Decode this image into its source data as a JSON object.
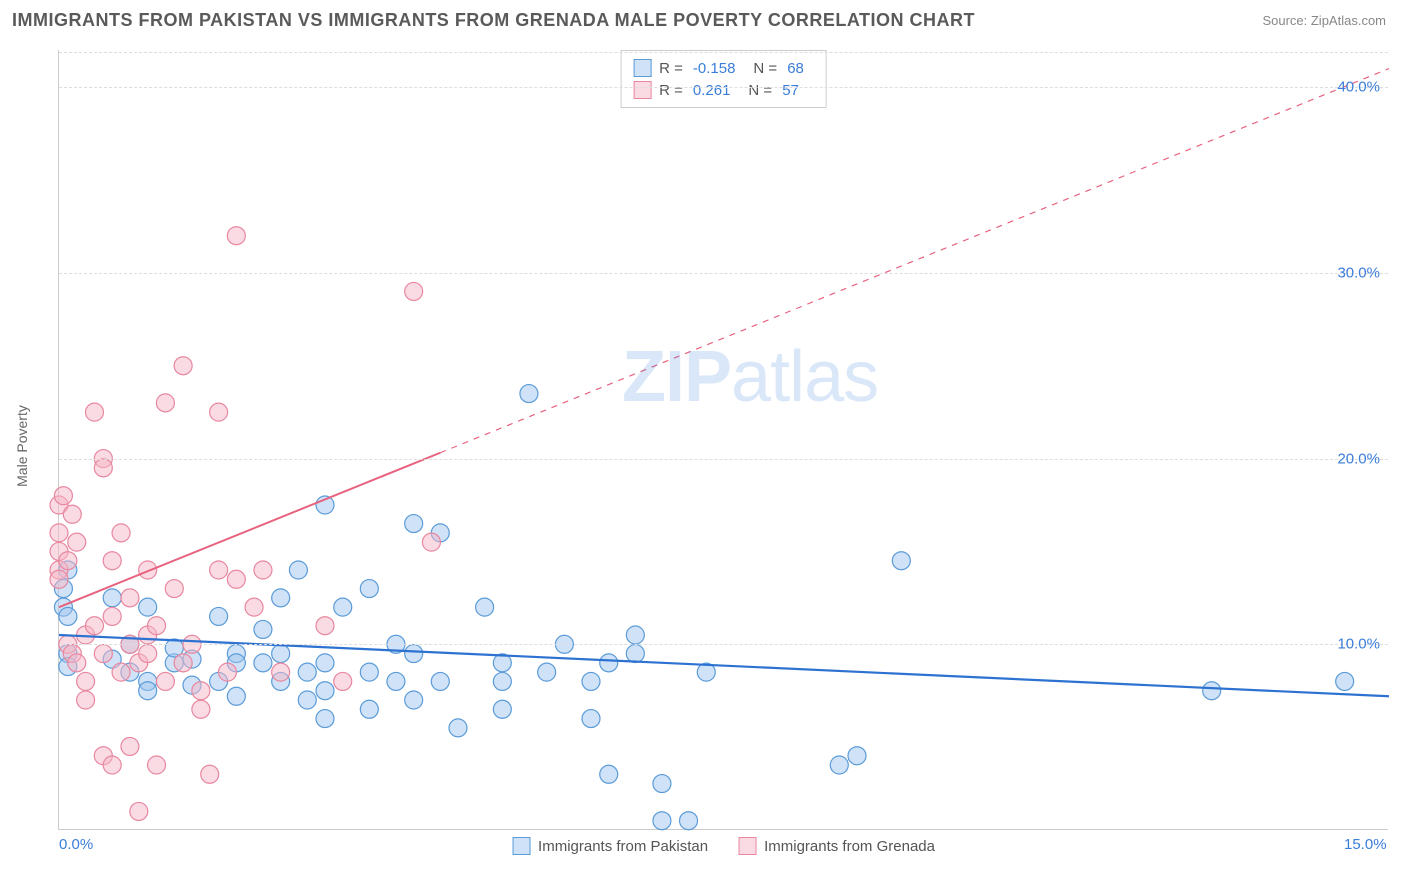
{
  "header": {
    "title": "IMMIGRANTS FROM PAKISTAN VS IMMIGRANTS FROM GRENADA MALE POVERTY CORRELATION CHART",
    "source": "Source: ZipAtlas.com"
  },
  "chart": {
    "type": "scatter",
    "ylabel": "Male Poverty",
    "xlim": [
      0,
      15
    ],
    "ylim": [
      0,
      42
    ],
    "yticks": [
      {
        "value": 10,
        "label": "10.0%"
      },
      {
        "value": 20,
        "label": "20.0%"
      },
      {
        "value": 30,
        "label": "30.0%"
      },
      {
        "value": 40,
        "label": "40.0%"
      }
    ],
    "xticks": [
      {
        "value": 0,
        "label": "0.0%"
      },
      {
        "value": 15,
        "label": "15.0%"
      }
    ],
    "background_color": "#ffffff",
    "grid_color": "#dddddd",
    "marker_radius": 9,
    "marker_stroke_width": 1.2,
    "series": [
      {
        "name": "Immigrants from Pakistan",
        "color_fill": "#9fc5f080",
        "color_stroke": "#5a9bd8",
        "R": "-0.158",
        "N": "68",
        "trend": {
          "x1": 0,
          "y1": 10.5,
          "x2": 15,
          "y2": 7.2,
          "color": "#2d72d0",
          "width": 2.2,
          "dash": "none"
        },
        "points": [
          [
            0.05,
            13.0
          ],
          [
            0.05,
            12.0
          ],
          [
            0.1,
            14.0
          ],
          [
            0.1,
            11.5
          ],
          [
            0.1,
            9.5
          ],
          [
            0.1,
            8.8
          ],
          [
            0.6,
            12.5
          ],
          [
            0.6,
            9.2
          ],
          [
            0.8,
            10.0
          ],
          [
            0.8,
            8.5
          ],
          [
            1.0,
            12.0
          ],
          [
            1.0,
            8.0
          ],
          [
            1.0,
            7.5
          ],
          [
            1.3,
            9.0
          ],
          [
            1.3,
            9.8
          ],
          [
            1.5,
            9.2
          ],
          [
            1.5,
            7.8
          ],
          [
            1.8,
            11.5
          ],
          [
            1.8,
            8.0
          ],
          [
            2.0,
            9.5
          ],
          [
            2.0,
            9.0
          ],
          [
            2.0,
            7.2
          ],
          [
            2.3,
            10.8
          ],
          [
            2.3,
            9.0
          ],
          [
            2.5,
            12.5
          ],
          [
            2.5,
            9.5
          ],
          [
            2.5,
            8.0
          ],
          [
            2.7,
            14.0
          ],
          [
            2.8,
            7.0
          ],
          [
            2.8,
            8.5
          ],
          [
            3.0,
            17.5
          ],
          [
            3.0,
            9.0
          ],
          [
            3.0,
            7.5
          ],
          [
            3.0,
            6.0
          ],
          [
            3.2,
            12.0
          ],
          [
            3.5,
            13.0
          ],
          [
            3.5,
            8.5
          ],
          [
            3.5,
            6.5
          ],
          [
            3.8,
            10.0
          ],
          [
            3.8,
            8.0
          ],
          [
            4.0,
            16.5
          ],
          [
            4.0,
            9.5
          ],
          [
            4.0,
            7.0
          ],
          [
            4.3,
            16.0
          ],
          [
            4.3,
            8.0
          ],
          [
            4.5,
            5.5
          ],
          [
            4.8,
            12.0
          ],
          [
            5.0,
            9.0
          ],
          [
            5.0,
            8.0
          ],
          [
            5.0,
            6.5
          ],
          [
            5.3,
            23.5
          ],
          [
            5.5,
            8.5
          ],
          [
            5.7,
            10.0
          ],
          [
            6.0,
            8.0
          ],
          [
            6.0,
            6.0
          ],
          [
            6.2,
            9.0
          ],
          [
            6.2,
            3.0
          ],
          [
            6.5,
            10.5
          ],
          [
            6.5,
            9.5
          ],
          [
            6.8,
            2.5
          ],
          [
            6.8,
            0.5
          ],
          [
            7.1,
            0.5
          ],
          [
            7.3,
            8.5
          ],
          [
            8.8,
            3.5
          ],
          [
            9.0,
            4.0
          ],
          [
            9.5,
            14.5
          ],
          [
            13.0,
            7.5
          ],
          [
            14.5,
            8.0
          ]
        ]
      },
      {
        "name": "Immigrants from Grenada",
        "color_fill": "#f5b8c880",
        "color_stroke": "#e8879f",
        "R": "0.261",
        "N": "57",
        "trend": {
          "x1": 0,
          "y1": 12.0,
          "x2": 15,
          "y2": 41.0,
          "color": "#e8627f",
          "width": 2,
          "dash": "solid_then_dash"
        },
        "points": [
          [
            0.0,
            17.5
          ],
          [
            0.0,
            16.0
          ],
          [
            0.0,
            15.0
          ],
          [
            0.0,
            14.0
          ],
          [
            0.0,
            13.5
          ],
          [
            0.05,
            18.0
          ],
          [
            0.1,
            14.5
          ],
          [
            0.1,
            10.0
          ],
          [
            0.15,
            17.0
          ],
          [
            0.15,
            9.5
          ],
          [
            0.2,
            15.5
          ],
          [
            0.2,
            9.0
          ],
          [
            0.3,
            10.5
          ],
          [
            0.3,
            8.0
          ],
          [
            0.3,
            7.0
          ],
          [
            0.4,
            22.5
          ],
          [
            0.4,
            11.0
          ],
          [
            0.5,
            20.0
          ],
          [
            0.5,
            19.5
          ],
          [
            0.5,
            9.5
          ],
          [
            0.5,
            4.0
          ],
          [
            0.6,
            14.5
          ],
          [
            0.6,
            11.5
          ],
          [
            0.6,
            3.5
          ],
          [
            0.7,
            16.0
          ],
          [
            0.7,
            8.5
          ],
          [
            0.8,
            12.5
          ],
          [
            0.8,
            10.0
          ],
          [
            0.8,
            4.5
          ],
          [
            0.9,
            9.0
          ],
          [
            0.9,
            1.0
          ],
          [
            1.0,
            14.0
          ],
          [
            1.0,
            10.5
          ],
          [
            1.0,
            9.5
          ],
          [
            1.1,
            11.0
          ],
          [
            1.1,
            3.5
          ],
          [
            1.2,
            23.0
          ],
          [
            1.2,
            8.0
          ],
          [
            1.3,
            13.0
          ],
          [
            1.4,
            25.0
          ],
          [
            1.4,
            9.0
          ],
          [
            1.5,
            10.0
          ],
          [
            1.6,
            6.5
          ],
          [
            1.6,
            7.5
          ],
          [
            1.7,
            3.0
          ],
          [
            1.8,
            22.5
          ],
          [
            1.8,
            14.0
          ],
          [
            1.9,
            8.5
          ],
          [
            2.0,
            32.0
          ],
          [
            2.0,
            13.5
          ],
          [
            2.2,
            12.0
          ],
          [
            2.3,
            14.0
          ],
          [
            2.5,
            8.5
          ],
          [
            3.0,
            11.0
          ],
          [
            3.2,
            8.0
          ],
          [
            4.0,
            29.0
          ],
          [
            4.2,
            15.5
          ]
        ]
      }
    ],
    "watermark": "ZIPatlas"
  }
}
